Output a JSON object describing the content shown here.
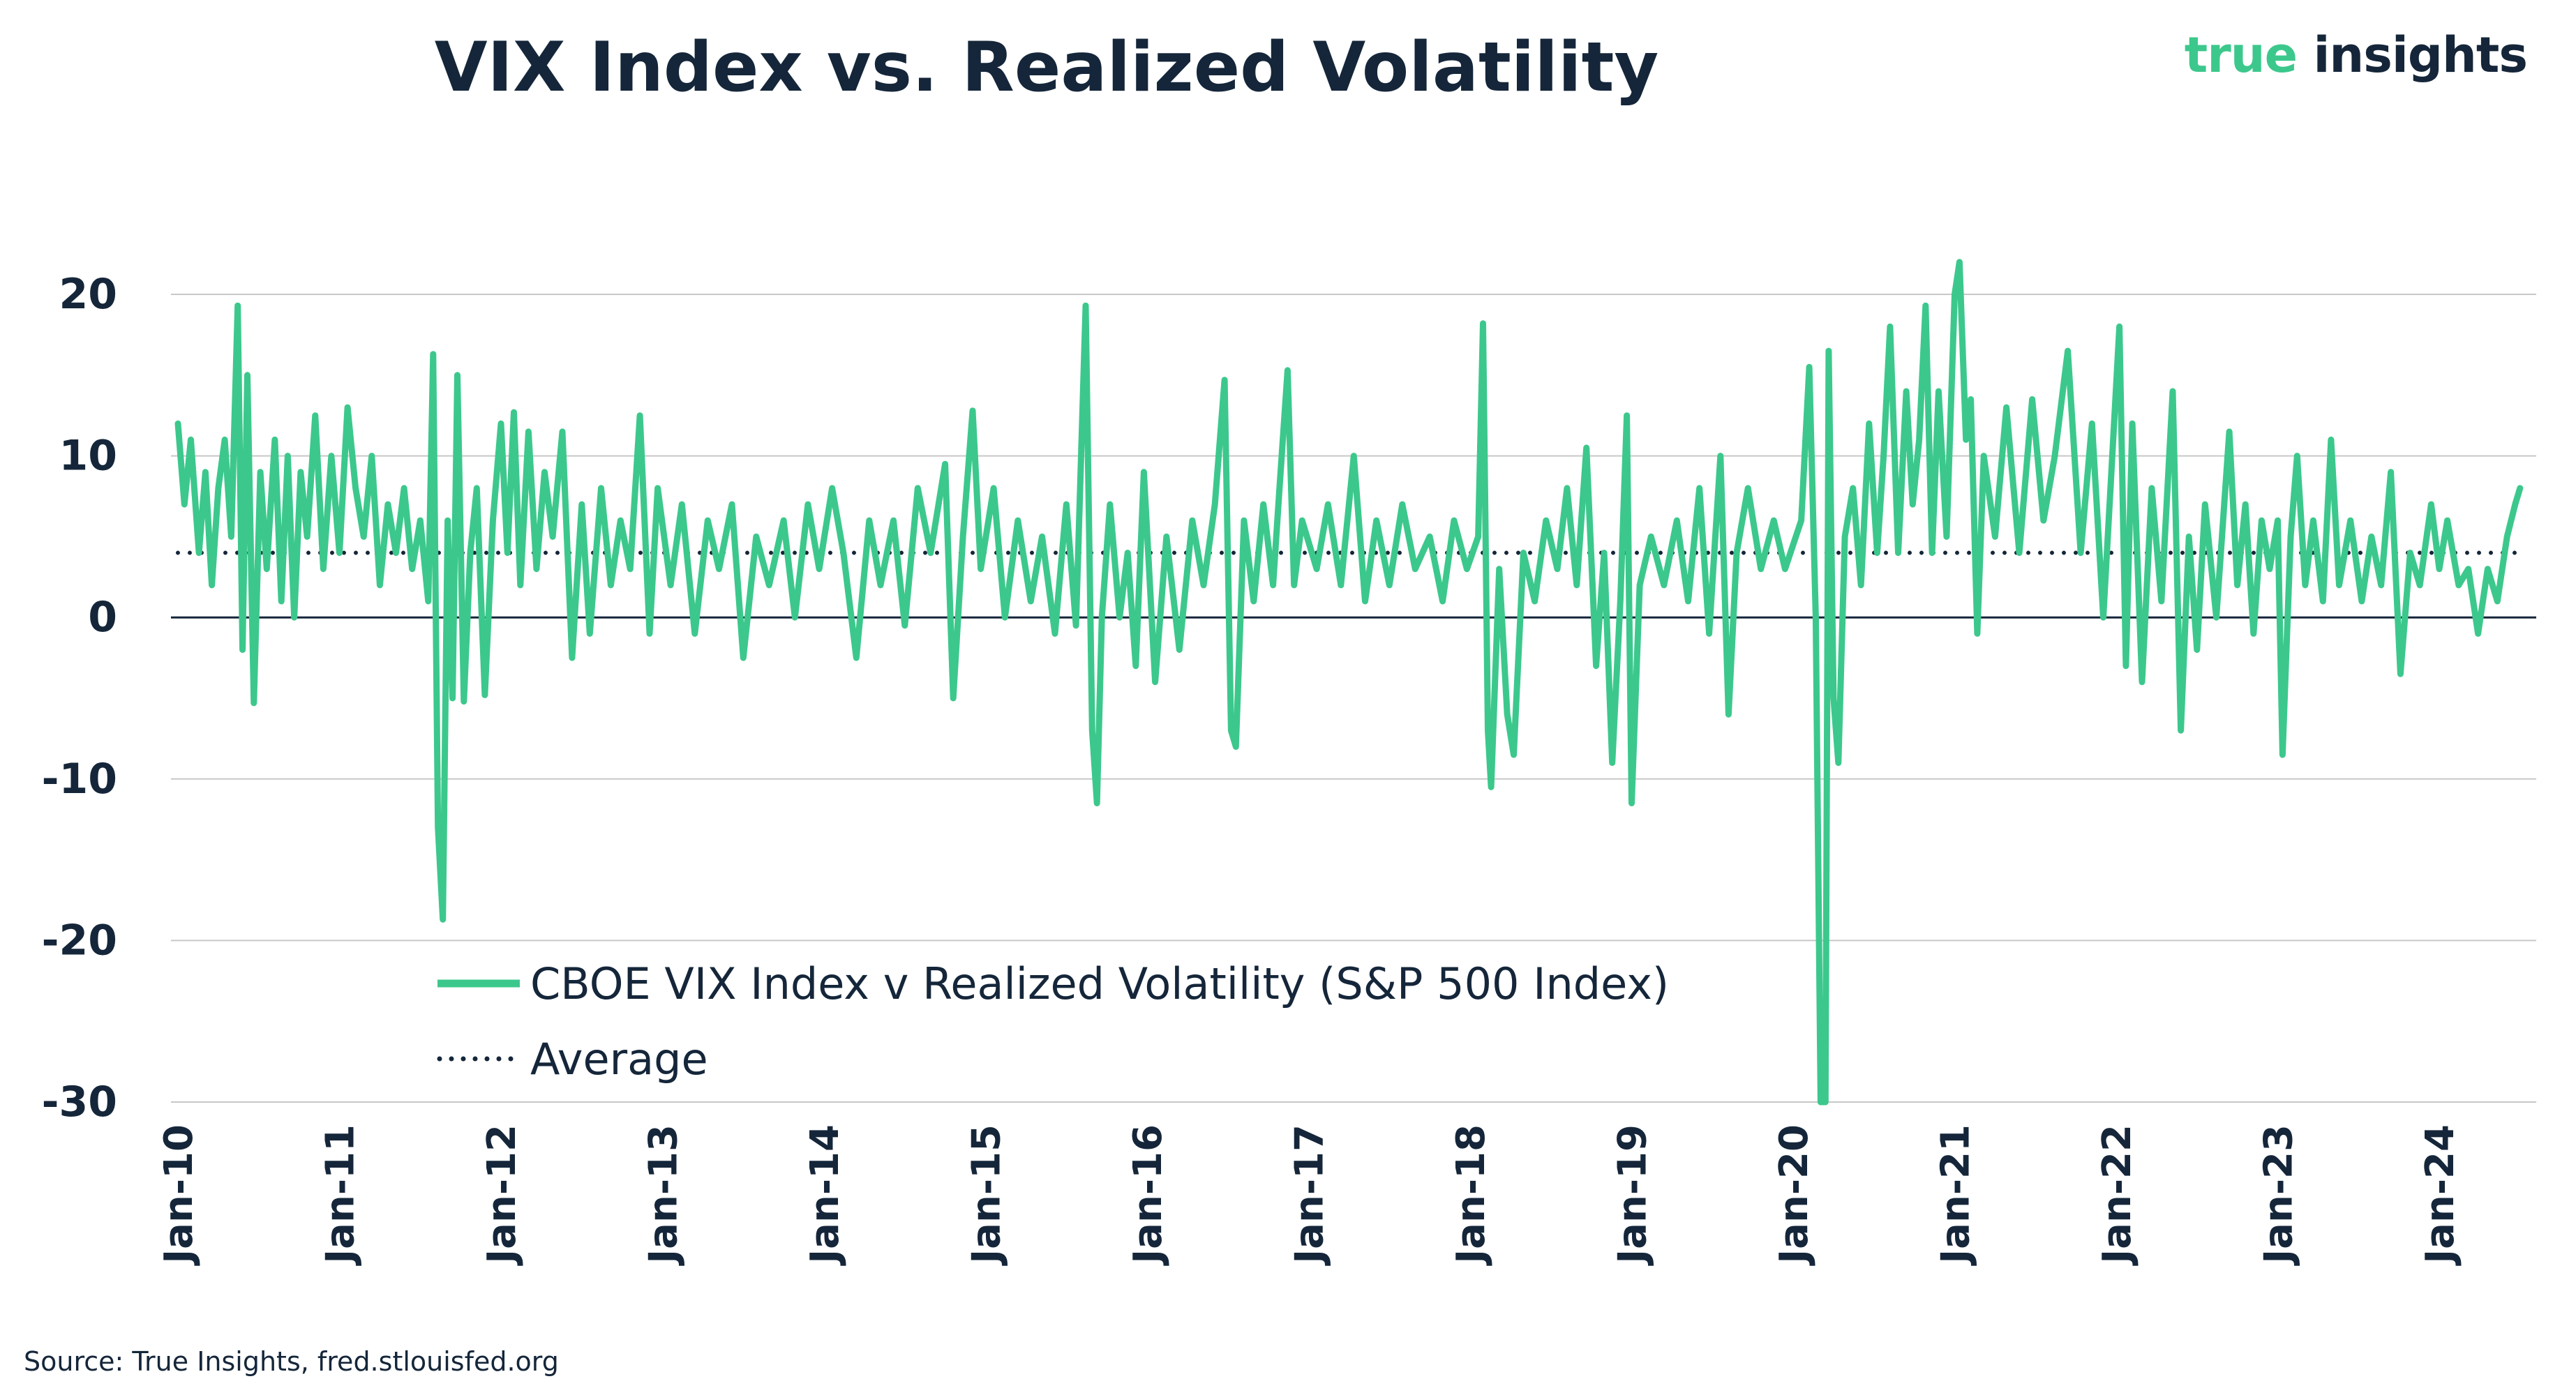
{
  "header": {
    "title": "VIX Index vs. Realized Volatility",
    "brand_part1": "true",
    "brand_part2": "insights"
  },
  "footer": {
    "source": "Source: True Insights, fred.stlouisfed.org"
  },
  "colors": {
    "series": "#3cc88c",
    "average": "#15263a",
    "grid": "#c8c8c8",
    "zero_line": "#15263a",
    "text": "#15263a"
  },
  "chart_data": {
    "type": "line",
    "title": "VIX Index vs. Realized Volatility",
    "xlabel": "",
    "ylabel": "",
    "ylim": [
      -30,
      23
    ],
    "xlim": [
      2010.0,
      2024.8
    ],
    "y_ticks": [
      20,
      10,
      0,
      -10,
      -20,
      -30
    ],
    "x_tick_values": [
      2010,
      2011,
      2012,
      2013,
      2014,
      2015,
      2016,
      2017,
      2018,
      2019,
      2020,
      2021,
      2022,
      2023,
      2024
    ],
    "x_tick_labels": [
      "Jan-10",
      "Jan-11",
      "Jan-12",
      "Jan-13",
      "Jan-14",
      "Jan-15",
      "Jan-16",
      "Jan-17",
      "Jan-18",
      "Jan-19",
      "Jan-20",
      "Jan-21",
      "Jan-22",
      "Jan-23",
      "Jan-24"
    ],
    "legend": {
      "placement": "bottom-center",
      "entries": [
        "CBOE VIX Index v Realized Volatility (S&P 500 Index)",
        "Average"
      ]
    },
    "average": {
      "name": "Average",
      "value": 4
    },
    "series": [
      {
        "name": "CBOE VIX Index v Realized Volatility (S&P 500 Index)",
        "points": [
          [
            2010.0,
            12
          ],
          [
            2010.04,
            7
          ],
          [
            2010.08,
            11
          ],
          [
            2010.13,
            4
          ],
          [
            2010.17,
            9
          ],
          [
            2010.21,
            2
          ],
          [
            2010.25,
            8
          ],
          [
            2010.29,
            11
          ],
          [
            2010.33,
            5
          ],
          [
            2010.37,
            19.3
          ],
          [
            2010.4,
            -2
          ],
          [
            2010.43,
            15
          ],
          [
            2010.47,
            -5.3
          ],
          [
            2010.51,
            9
          ],
          [
            2010.55,
            3
          ],
          [
            2010.6,
            11
          ],
          [
            2010.64,
            1
          ],
          [
            2010.68,
            10
          ],
          [
            2010.72,
            0
          ],
          [
            2010.76,
            9
          ],
          [
            2010.8,
            5
          ],
          [
            2010.85,
            12.5
          ],
          [
            2010.9,
            3
          ],
          [
            2010.95,
            10
          ],
          [
            2011.0,
            4
          ],
          [
            2011.05,
            13
          ],
          [
            2011.1,
            8
          ],
          [
            2011.15,
            5
          ],
          [
            2011.2,
            10
          ],
          [
            2011.25,
            2
          ],
          [
            2011.3,
            7
          ],
          [
            2011.35,
            4
          ],
          [
            2011.4,
            8
          ],
          [
            2011.45,
            3
          ],
          [
            2011.5,
            6
          ],
          [
            2011.55,
            1
          ],
          [
            2011.58,
            16.3
          ],
          [
            2011.61,
            -13
          ],
          [
            2011.64,
            -18.7
          ],
          [
            2011.67,
            6
          ],
          [
            2011.7,
            -5
          ],
          [
            2011.73,
            15
          ],
          [
            2011.77,
            -5.2
          ],
          [
            2011.81,
            4
          ],
          [
            2011.85,
            8
          ],
          [
            2011.9,
            -4.8
          ],
          [
            2011.95,
            6
          ],
          [
            2012.0,
            12
          ],
          [
            2012.04,
            4
          ],
          [
            2012.08,
            12.7
          ],
          [
            2012.12,
            2
          ],
          [
            2012.17,
            11.5
          ],
          [
            2012.22,
            3
          ],
          [
            2012.27,
            9
          ],
          [
            2012.32,
            5
          ],
          [
            2012.38,
            11.5
          ],
          [
            2012.44,
            -2.5
          ],
          [
            2012.5,
            7
          ],
          [
            2012.55,
            -1
          ],
          [
            2012.62,
            8
          ],
          [
            2012.68,
            2
          ],
          [
            2012.74,
            6
          ],
          [
            2012.8,
            3
          ],
          [
            2012.86,
            12.5
          ],
          [
            2012.92,
            -1
          ],
          [
            2012.97,
            8
          ],
          [
            2013.05,
            2
          ],
          [
            2013.12,
            7
          ],
          [
            2013.2,
            -1
          ],
          [
            2013.28,
            6
          ],
          [
            2013.35,
            3
          ],
          [
            2013.43,
            7
          ],
          [
            2013.5,
            -2.5
          ],
          [
            2013.58,
            5
          ],
          [
            2013.66,
            2
          ],
          [
            2013.75,
            6
          ],
          [
            2013.82,
            0
          ],
          [
            2013.9,
            7
          ],
          [
            2013.97,
            3
          ],
          [
            2014.05,
            8
          ],
          [
            2014.12,
            4
          ],
          [
            2014.2,
            -2.5
          ],
          [
            2014.28,
            6
          ],
          [
            2014.35,
            2
          ],
          [
            2014.43,
            6
          ],
          [
            2014.5,
            -0.5
          ],
          [
            2014.58,
            8
          ],
          [
            2014.66,
            4
          ],
          [
            2014.75,
            9.5
          ],
          [
            2014.8,
            -5
          ],
          [
            2014.86,
            5
          ],
          [
            2014.92,
            12.8
          ],
          [
            2014.97,
            3
          ],
          [
            2015.05,
            8
          ],
          [
            2015.12,
            0
          ],
          [
            2015.2,
            6
          ],
          [
            2015.28,
            1
          ],
          [
            2015.35,
            5
          ],
          [
            2015.43,
            -1
          ],
          [
            2015.5,
            7
          ],
          [
            2015.56,
            -0.5
          ],
          [
            2015.62,
            19.3
          ],
          [
            2015.66,
            -7
          ],
          [
            2015.69,
            -11.5
          ],
          [
            2015.72,
            0
          ],
          [
            2015.77,
            7
          ],
          [
            2015.83,
            0
          ],
          [
            2015.88,
            4
          ],
          [
            2015.93,
            -3
          ],
          [
            2015.98,
            9
          ],
          [
            2016.05,
            -4
          ],
          [
            2016.12,
            5
          ],
          [
            2016.2,
            -2
          ],
          [
            2016.28,
            6
          ],
          [
            2016.35,
            2
          ],
          [
            2016.42,
            7
          ],
          [
            2016.48,
            14.7
          ],
          [
            2016.52,
            -7
          ],
          [
            2016.55,
            -8
          ],
          [
            2016.6,
            6
          ],
          [
            2016.66,
            1
          ],
          [
            2016.72,
            7
          ],
          [
            2016.78,
            2
          ],
          [
            2016.82,
            8
          ],
          [
            2016.87,
            15.3
          ],
          [
            2016.91,
            2
          ],
          [
            2016.96,
            6
          ],
          [
            2017.05,
            3
          ],
          [
            2017.12,
            7
          ],
          [
            2017.2,
            2
          ],
          [
            2017.28,
            10
          ],
          [
            2017.35,
            1
          ],
          [
            2017.42,
            6
          ],
          [
            2017.5,
            2
          ],
          [
            2017.58,
            7
          ],
          [
            2017.66,
            3
          ],
          [
            2017.75,
            5
          ],
          [
            2017.83,
            1
          ],
          [
            2017.9,
            6
          ],
          [
            2017.98,
            3
          ],
          [
            2018.05,
            5
          ],
          [
            2018.08,
            18.2
          ],
          [
            2018.11,
            -7
          ],
          [
            2018.13,
            -10.5
          ],
          [
            2018.18,
            3
          ],
          [
            2018.23,
            -6
          ],
          [
            2018.27,
            -8.5
          ],
          [
            2018.33,
            4
          ],
          [
            2018.4,
            1
          ],
          [
            2018.47,
            6
          ],
          [
            2018.54,
            3
          ],
          [
            2018.6,
            8
          ],
          [
            2018.66,
            2
          ],
          [
            2018.72,
            10.5
          ],
          [
            2018.78,
            -3
          ],
          [
            2018.83,
            4
          ],
          [
            2018.88,
            -9
          ],
          [
            2018.93,
            1
          ],
          [
            2018.97,
            12.5
          ],
          [
            2019.0,
            -11.5
          ],
          [
            2019.05,
            2
          ],
          [
            2019.12,
            5
          ],
          [
            2019.2,
            2
          ],
          [
            2019.28,
            6
          ],
          [
            2019.35,
            1
          ],
          [
            2019.42,
            8
          ],
          [
            2019.48,
            -1
          ],
          [
            2019.55,
            10
          ],
          [
            2019.6,
            -6
          ],
          [
            2019.65,
            4
          ],
          [
            2019.72,
            8
          ],
          [
            2019.8,
            3
          ],
          [
            2019.88,
            6
          ],
          [
            2019.95,
            3
          ],
          [
            2020.05,
            6
          ],
          [
            2020.1,
            15.5
          ],
          [
            2020.14,
            0
          ],
          [
            2020.17,
            -30
          ],
          [
            2020.2,
            -30
          ],
          [
            2020.22,
            16.5
          ],
          [
            2020.25,
            -5
          ],
          [
            2020.28,
            -9
          ],
          [
            2020.32,
            5
          ],
          [
            2020.37,
            8
          ],
          [
            2020.42,
            2
          ],
          [
            2020.47,
            12
          ],
          [
            2020.52,
            4
          ],
          [
            2020.56,
            10
          ],
          [
            2020.6,
            18
          ],
          [
            2020.65,
            4
          ],
          [
            2020.7,
            14
          ],
          [
            2020.74,
            7
          ],
          [
            2020.78,
            11
          ],
          [
            2020.82,
            19.3
          ],
          [
            2020.86,
            4
          ],
          [
            2020.9,
            14
          ],
          [
            2020.95,
            5
          ],
          [
            2021.0,
            20
          ],
          [
            2021.03,
            22
          ],
          [
            2021.07,
            11
          ],
          [
            2021.1,
            13.5
          ],
          [
            2021.14,
            -1
          ],
          [
            2021.18,
            10
          ],
          [
            2021.25,
            5
          ],
          [
            2021.32,
            13
          ],
          [
            2021.4,
            4
          ],
          [
            2021.48,
            13.5
          ],
          [
            2021.55,
            6
          ],
          [
            2021.62,
            10
          ],
          [
            2021.7,
            16.5
          ],
          [
            2021.78,
            4
          ],
          [
            2021.85,
            12
          ],
          [
            2021.92,
            0
          ],
          [
            2021.97,
            9
          ],
          [
            2022.02,
            18
          ],
          [
            2022.06,
            -3
          ],
          [
            2022.1,
            12
          ],
          [
            2022.16,
            -4
          ],
          [
            2022.22,
            8
          ],
          [
            2022.28,
            1
          ],
          [
            2022.35,
            14
          ],
          [
            2022.4,
            -7
          ],
          [
            2022.45,
            5
          ],
          [
            2022.5,
            -2
          ],
          [
            2022.55,
            7
          ],
          [
            2022.62,
            0
          ],
          [
            2022.7,
            11.5
          ],
          [
            2022.75,
            2
          ],
          [
            2022.8,
            7
          ],
          [
            2022.85,
            -1
          ],
          [
            2022.9,
            6
          ],
          [
            2022.95,
            3
          ],
          [
            2023.0,
            6
          ],
          [
            2023.03,
            -8.5
          ],
          [
            2023.08,
            5
          ],
          [
            2023.12,
            10
          ],
          [
            2023.17,
            2
          ],
          [
            2023.22,
            6
          ],
          [
            2023.28,
            1
          ],
          [
            2023.33,
            11
          ],
          [
            2023.38,
            2
          ],
          [
            2023.45,
            6
          ],
          [
            2023.52,
            1
          ],
          [
            2023.58,
            5
          ],
          [
            2023.64,
            2
          ],
          [
            2023.7,
            9
          ],
          [
            2023.76,
            -3.5
          ],
          [
            2023.82,
            4
          ],
          [
            2023.88,
            2
          ],
          [
            2023.95,
            7
          ],
          [
            2024.0,
            3
          ],
          [
            2024.05,
            6
          ],
          [
            2024.12,
            2
          ],
          [
            2024.18,
            3
          ],
          [
            2024.24,
            -1
          ],
          [
            2024.3,
            3
          ],
          [
            2024.36,
            1
          ],
          [
            2024.42,
            5
          ],
          [
            2024.47,
            7
          ],
          [
            2024.5,
            8
          ]
        ]
      }
    ]
  }
}
